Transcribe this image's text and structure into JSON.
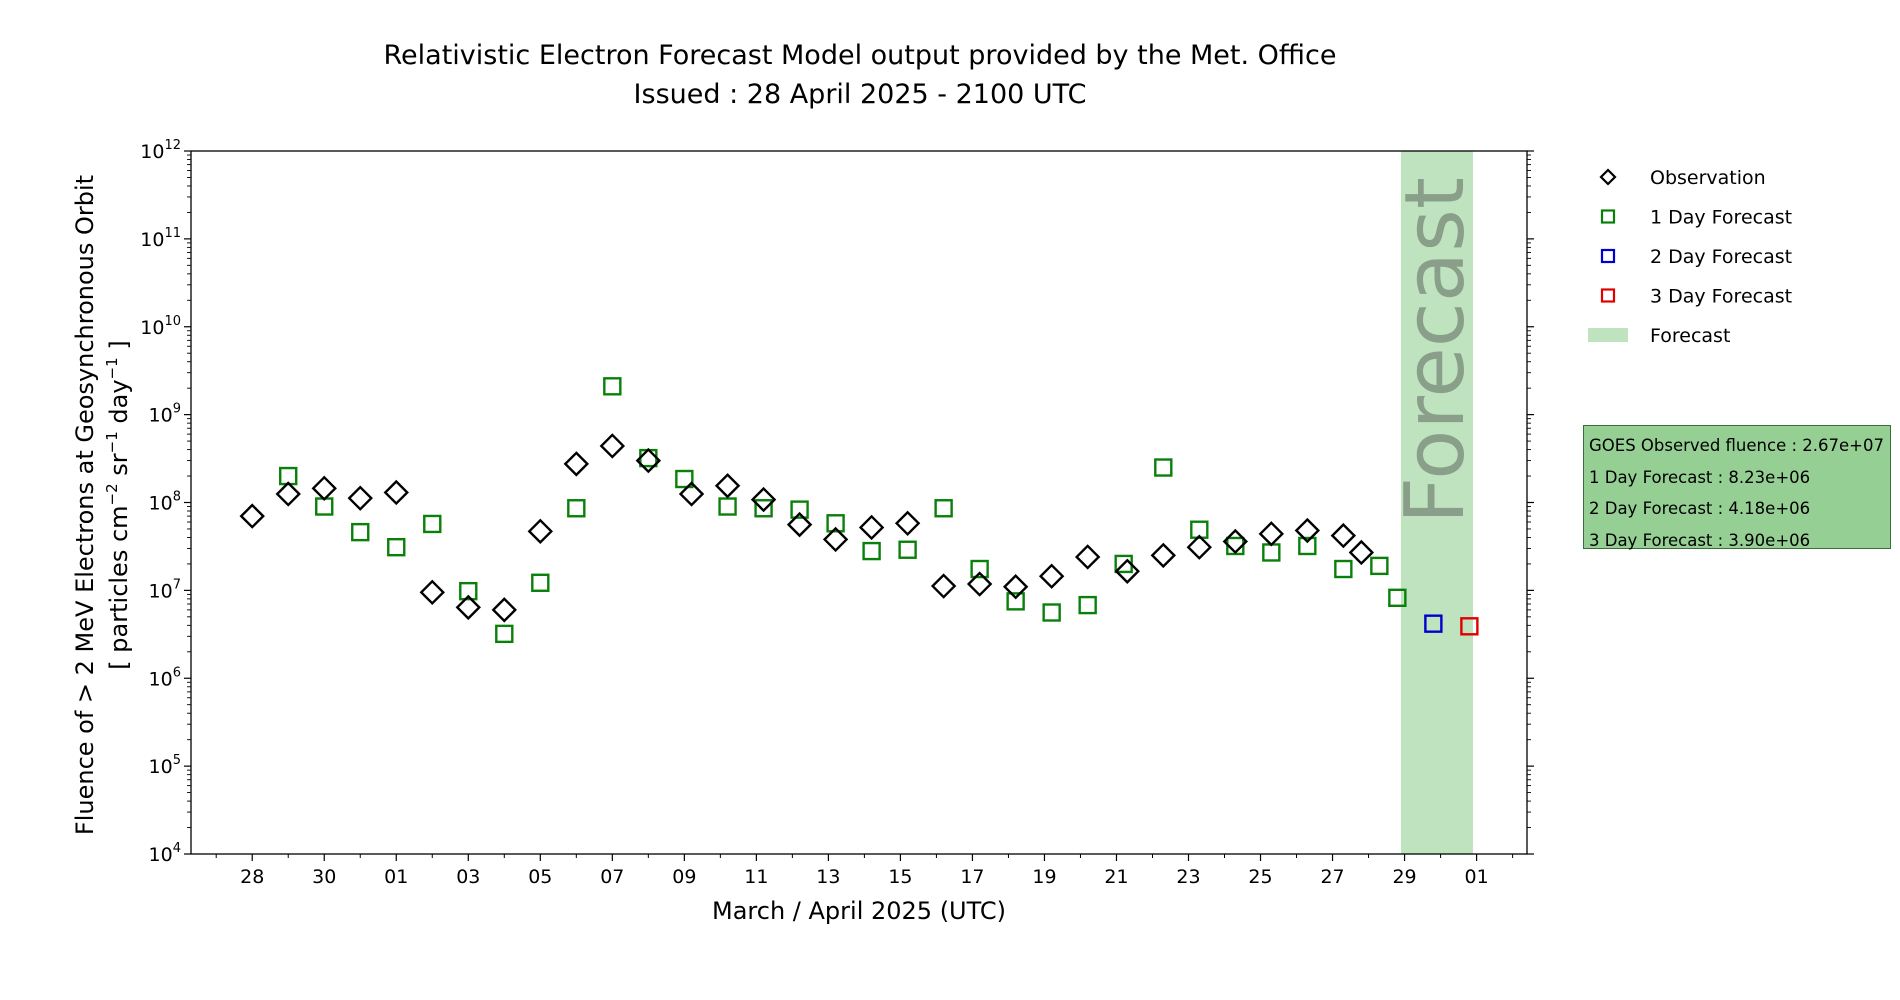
{
  "chart_data": {
    "type": "scatter",
    "title": [
      "Relativistic Electron Forecast Model output provided by the Met. Office",
      "Issued : 28 April 2025 - 2100 UTC"
    ],
    "xlabel": "March / April 2025 (UTC)",
    "ylabel_line1": "Fluence of > 2 MeV Electrons at Geosynchronous Orbit",
    "ylabel_line2": [
      "[ particles cm",
      "−2",
      " sr",
      "−1",
      " day",
      "−1",
      " ]"
    ],
    "yscale": "log",
    "ylim_exponent": [
      4,
      12
    ],
    "y_ticks": [
      {
        "base": "10",
        "exp": "4",
        "value": 4
      },
      {
        "base": "10",
        "exp": "5",
        "value": 5
      },
      {
        "base": "10",
        "exp": "6",
        "value": 6
      },
      {
        "base": "10",
        "exp": "7",
        "value": 7
      },
      {
        "base": "10",
        "exp": "8",
        "value": 8
      },
      {
        "base": "10",
        "exp": "9",
        "value": 9
      },
      {
        "base": "10",
        "exp": "10",
        "value": 10
      },
      {
        "base": "10",
        "exp": "11",
        "value": 11
      },
      {
        "base": "10",
        "exp": "12",
        "value": 12
      }
    ],
    "xlim_days": [
      -1.7,
      35.4
    ],
    "x_ticks": [
      {
        "label": "28",
        "day": 0
      },
      {
        "label": "30",
        "day": 2
      },
      {
        "label": "01",
        "day": 4
      },
      {
        "label": "03",
        "day": 6
      },
      {
        "label": "05",
        "day": 8
      },
      {
        "label": "07",
        "day": 10
      },
      {
        "label": "09",
        "day": 12
      },
      {
        "label": "11",
        "day": 14
      },
      {
        "label": "13",
        "day": 16
      },
      {
        "label": "15",
        "day": 18
      },
      {
        "label": "17",
        "day": 20
      },
      {
        "label": "19",
        "day": 22
      },
      {
        "label": "21",
        "day": 24
      },
      {
        "label": "23",
        "day": 26
      },
      {
        "label": "25",
        "day": 28
      },
      {
        "label": "27",
        "day": 30
      },
      {
        "label": "29",
        "day": 32
      },
      {
        "label": "01",
        "day": 34
      }
    ],
    "forecast_band_days": [
      31.9,
      33.9
    ],
    "forecast_band_label": "Forecast",
    "colors": {
      "observation": "#000000",
      "day1": "#0a800a",
      "day2": "#0000cc",
      "day3": "#e00000",
      "band": "#bfe3bf",
      "band_text": "#8a9f8a"
    },
    "series": [
      {
        "name": "Observation",
        "marker": "diamond",
        "points": [
          [
            0,
            70000000.0
          ],
          [
            1,
            125000000.0
          ],
          [
            2,
            145000000.0
          ],
          [
            3,
            112000000.0
          ],
          [
            4,
            130000000.0
          ],
          [
            5,
            9500000.0
          ],
          [
            6,
            6400000.0
          ],
          [
            7,
            6000000.0
          ],
          [
            8,
            47000000.0
          ],
          [
            9,
            275000000.0
          ],
          [
            10,
            440000000.0
          ],
          [
            11,
            300000000.0
          ],
          [
            12.2,
            125000000.0
          ],
          [
            13.2,
            155000000.0
          ],
          [
            14.2,
            108000000.0
          ],
          [
            15.2,
            56000000.0
          ],
          [
            16.2,
            38000000.0
          ],
          [
            17.2,
            52000000.0
          ],
          [
            18.2,
            58000000.0
          ],
          [
            19.2,
            11200000.0
          ],
          [
            20.2,
            11800000.0
          ],
          [
            21.2,
            11000000.0
          ],
          [
            22.2,
            14500000.0
          ],
          [
            23.2,
            24000000.0
          ],
          [
            24.3,
            16500000.0
          ],
          [
            25.3,
            25000000.0
          ],
          [
            26.3,
            31000000.0
          ],
          [
            27.3,
            36000000.0
          ],
          [
            28.3,
            44000000.0
          ],
          [
            29.3,
            48000000.0
          ],
          [
            30.3,
            42000000.0
          ],
          [
            30.8,
            27000000.0
          ]
        ]
      },
      {
        "name": "1 Day Forecast",
        "marker": "square",
        "points": [
          [
            1,
            200000000.0
          ],
          [
            2,
            90000000.0
          ],
          [
            3,
            46000000.0
          ],
          [
            4,
            31000000.0
          ],
          [
            5,
            57000000.0
          ],
          [
            6,
            9800000.0
          ],
          [
            7,
            3200000.0
          ],
          [
            8,
            12200000.0
          ],
          [
            9,
            86000000.0
          ],
          [
            10,
            2100000000.0
          ],
          [
            11,
            320000000.0
          ],
          [
            12,
            185000000.0
          ],
          [
            13.2,
            90000000.0
          ],
          [
            14.2,
            86000000.0
          ],
          [
            15.2,
            83000000.0
          ],
          [
            16.2,
            58000000.0
          ],
          [
            17.2,
            28000000.0
          ],
          [
            18.2,
            29000000.0
          ],
          [
            19.2,
            86000000.0
          ],
          [
            20.2,
            17500000.0
          ],
          [
            21.2,
            7500000.0
          ],
          [
            22.2,
            5600000.0
          ],
          [
            23.2,
            6800000.0
          ],
          [
            24.2,
            20000000.0
          ],
          [
            25.3,
            250000000.0
          ],
          [
            26.3,
            49000000.0
          ],
          [
            27.3,
            32000000.0
          ],
          [
            28.3,
            27000000.0
          ],
          [
            29.3,
            32000000.0
          ],
          [
            30.3,
            17500000.0
          ],
          [
            31.3,
            19000000.0
          ],
          [
            31.8,
            8230000.0
          ]
        ]
      },
      {
        "name": "2 Day Forecast",
        "marker": "square",
        "points": [
          [
            32.8,
            4180000.0
          ]
        ]
      },
      {
        "name": "3 Day Forecast",
        "marker": "square",
        "points": [
          [
            33.8,
            3900000.0
          ]
        ]
      }
    ],
    "legend": {
      "position": "right",
      "entries": [
        {
          "label": "Observation",
          "marker": "diamond",
          "color": "#000000"
        },
        {
          "label": "1 Day Forecast",
          "marker": "square",
          "color": "#0a800a"
        },
        {
          "label": "2 Day Forecast",
          "marker": "square",
          "color": "#0000cc"
        },
        {
          "label": "3 Day Forecast",
          "marker": "square",
          "color": "#e00000"
        },
        {
          "label": "Forecast",
          "marker": "patch",
          "color": "#bfe3bf"
        }
      ]
    }
  },
  "info_box": {
    "lines": [
      "GOES Observed fluence : 2.67e+07",
      "1 Day Forecast : 8.23e+06",
      "2 Day Forecast : 4.18e+06",
      "3 Day Forecast : 3.90e+06"
    ],
    "background": "#95cf94"
  }
}
